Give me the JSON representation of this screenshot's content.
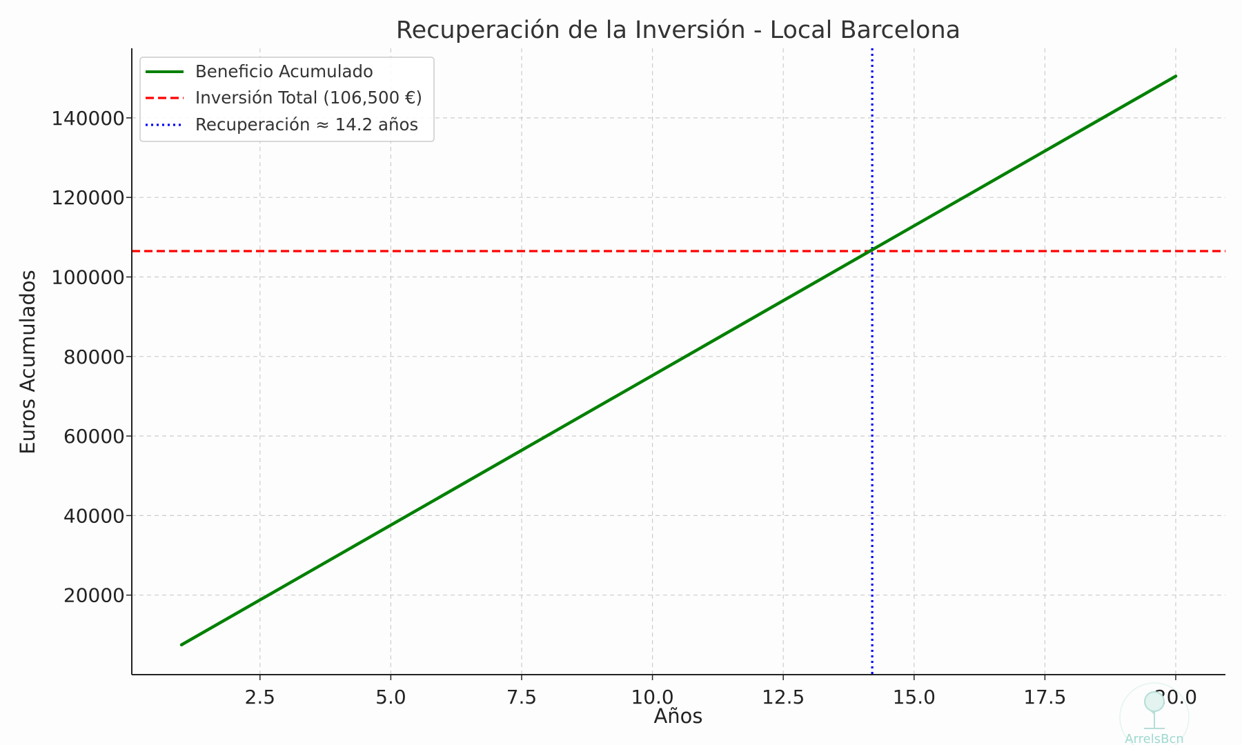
{
  "chart_data": {
    "type": "line",
    "title": "Recuperación de la Inversión - Local Barcelona",
    "xlabel": "Años",
    "ylabel": "Euros Acumulados",
    "xlim": [
      0.05,
      20.95
    ],
    "ylim": [
      0,
      157500
    ],
    "x_ticks": [
      2.5,
      5.0,
      7.5,
      10.0,
      12.5,
      15.0,
      17.5,
      20.0
    ],
    "x_tick_labels": [
      "2.5",
      "5.0",
      "7.5",
      "10.0",
      "12.5",
      "15.0",
      "17.5",
      "20.0"
    ],
    "y_ticks": [
      20000,
      40000,
      60000,
      80000,
      100000,
      120000,
      140000
    ],
    "y_tick_labels": [
      "20000",
      "40000",
      "60000",
      "80000",
      "100000",
      "120000",
      "140000"
    ],
    "grid": true,
    "legend_position": "top-left",
    "series": [
      {
        "name": "Beneficio Acumulado",
        "style": "solid",
        "color": "#008000",
        "x": [
          1,
          20
        ],
        "y": [
          7500,
          150500
        ]
      }
    ],
    "reference_lines": [
      {
        "name": "Inversión Total (106,500 €)",
        "orientation": "horizontal",
        "value": 106500,
        "style": "dashed",
        "color": "#ff0000"
      },
      {
        "name": "Recuperación ≈ 14.2 años",
        "orientation": "vertical",
        "value": 14.2,
        "style": "dotted",
        "color": "#0000ff"
      }
    ]
  },
  "watermark": {
    "text": "ArrelsBcn",
    "icon": "tree-icon",
    "color": "#9fd9cf"
  }
}
